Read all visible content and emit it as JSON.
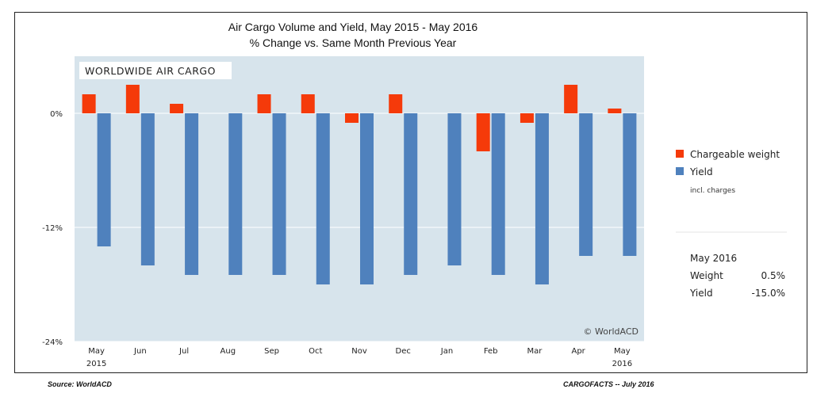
{
  "chart_data": {
    "type": "bar",
    "title": "Air Cargo Volume and Yield, May 2015 - May 2016",
    "subtitle": "% Change vs. Same Month Previous Year",
    "panel_label": "WORLDWIDE AIR CARGO",
    "watermark": "© WorldACD",
    "categories": [
      "May",
      "Jun",
      "Jul",
      "Aug",
      "Sep",
      "Oct",
      "Nov",
      "Dec",
      "Jan",
      "Feb",
      "Mar",
      "Apr",
      "May"
    ],
    "category_sublabels": [
      "2015",
      "",
      "",
      "",
      "",
      "",
      "",
      "",
      "",
      "",
      "",
      "",
      "2016"
    ],
    "series": [
      {
        "name": "Chargeable weight",
        "color": "#f53a0a",
        "values": [
          2.0,
          3.0,
          1.0,
          0.0,
          2.0,
          2.0,
          -1.0,
          2.0,
          0.0,
          -4.0,
          -1.0,
          3.0,
          0.5
        ]
      },
      {
        "name": "Yield",
        "color": "#4f81bd",
        "values": [
          -14.0,
          -16.0,
          -17.0,
          -17.0,
          -17.0,
          -18.0,
          -18.0,
          -17.0,
          -16.0,
          -17.0,
          -18.0,
          -15.0,
          -15.0
        ]
      }
    ],
    "legend_note": "incl. charges",
    "y_ticks": [
      {
        "value": 0,
        "label": "0%"
      },
      {
        "value": -12,
        "label": "-12%"
      },
      {
        "value": -24,
        "label": "-24%"
      }
    ],
    "ylim": [
      -24,
      6
    ],
    "grid": true,
    "legend_position": "right"
  },
  "summary": {
    "period": "May 2016",
    "rows": [
      {
        "label": "Weight",
        "value": "0.5%"
      },
      {
        "label": "Yield",
        "value": "-15.0%"
      }
    ]
  },
  "footer": {
    "source": "Source: WorldACD",
    "credit": "CARGOFACTS -- July 2016"
  }
}
